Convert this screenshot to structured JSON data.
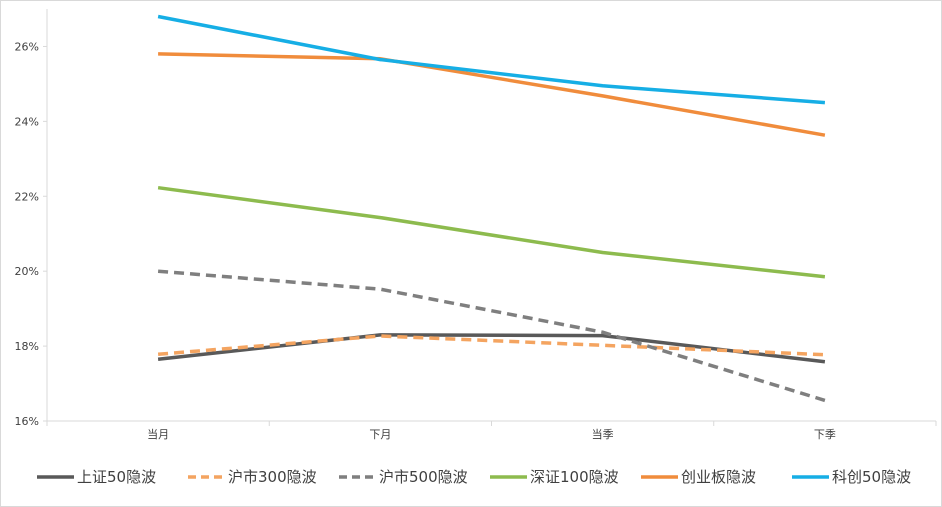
{
  "chart_data": {
    "type": "line",
    "title": "",
    "xlabel": "",
    "ylabel": "",
    "categories": [
      "当月",
      "下月",
      "当季",
      "下季"
    ],
    "ylim": [
      16,
      27
    ],
    "yticks": [
      16,
      18,
      20,
      22,
      24,
      26
    ],
    "ytick_labels": [
      "16%",
      "18%",
      "20%",
      "22%",
      "24%",
      "26%"
    ],
    "grid": false,
    "legend_position": "bottom",
    "series": [
      {
        "name": "上证50隐波",
        "values": [
          17.65,
          18.3,
          18.28,
          17.58
        ],
        "color": "#595959",
        "style": "solid"
      },
      {
        "name": "沪市300隐波",
        "values": [
          17.78,
          18.27,
          18.02,
          17.77
        ],
        "color": "#f4a460",
        "style": "dashed"
      },
      {
        "name": "沪市500隐波",
        "values": [
          20.0,
          19.52,
          18.37,
          16.55
        ],
        "color": "#7f7f7f",
        "style": "dashed"
      },
      {
        "name": "深证100隐波",
        "values": [
          22.23,
          21.43,
          20.5,
          19.85
        ],
        "color": "#8dbb4e",
        "style": "solid"
      },
      {
        "name": "创业板隐波",
        "values": [
          25.8,
          25.67,
          24.68,
          23.63
        ],
        "color": "#f08c3c",
        "style": "solid"
      },
      {
        "name": "科创50隐波",
        "values": [
          26.8,
          25.65,
          24.95,
          24.5
        ],
        "color": "#16aee5",
        "style": "solid"
      }
    ]
  }
}
